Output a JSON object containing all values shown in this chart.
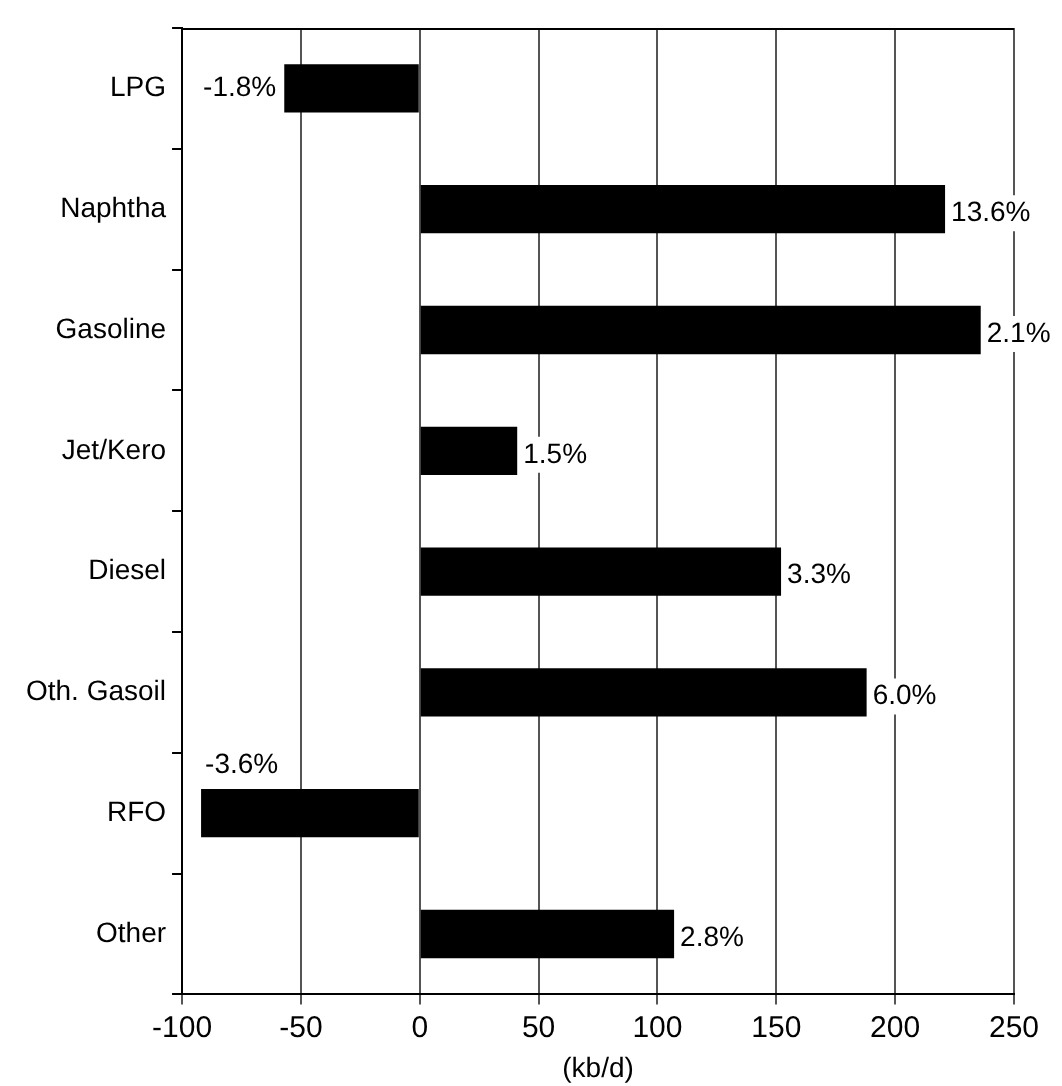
{
  "chart_data": {
    "type": "bar",
    "orientation": "horizontal",
    "xlabel": "(kb/d)",
    "categories": [
      "LPG",
      "Naphtha",
      "Gasoline",
      "Jet/Kero",
      "Diesel",
      "Oth. Gasoil",
      "RFO",
      "Other"
    ],
    "values": [
      -57,
      221,
      236,
      41,
      152,
      188,
      -92,
      107
    ],
    "annotations": [
      {
        "text": "-1.8%",
        "x": -57,
        "y": "LPG"
      },
      {
        "text": "13.6%",
        "x": 221,
        "y": "Naphtha"
      },
      {
        "text": "2.1%",
        "x": 236,
        "y": "Gasoline"
      },
      {
        "text": "1.5%",
        "x": 41,
        "y": "Jet/Kero"
      },
      {
        "text": "3.3%",
        "x": 152,
        "y": "Diesel"
      },
      {
        "text": "6.0%",
        "x": 188,
        "y": "Oth. Gasoil"
      },
      {
        "text": "-3.6%",
        "x": -92,
        "y": "RFO"
      },
      {
        "text": "2.8%",
        "x": 107,
        "y": "Other"
      }
    ],
    "color": "#000000",
    "xlim": [
      -100,
      250
    ],
    "xticks": [
      -100,
      -50,
      0,
      50,
      100,
      150,
      200,
      250
    ],
    "grid": "x",
    "legend": false
  }
}
